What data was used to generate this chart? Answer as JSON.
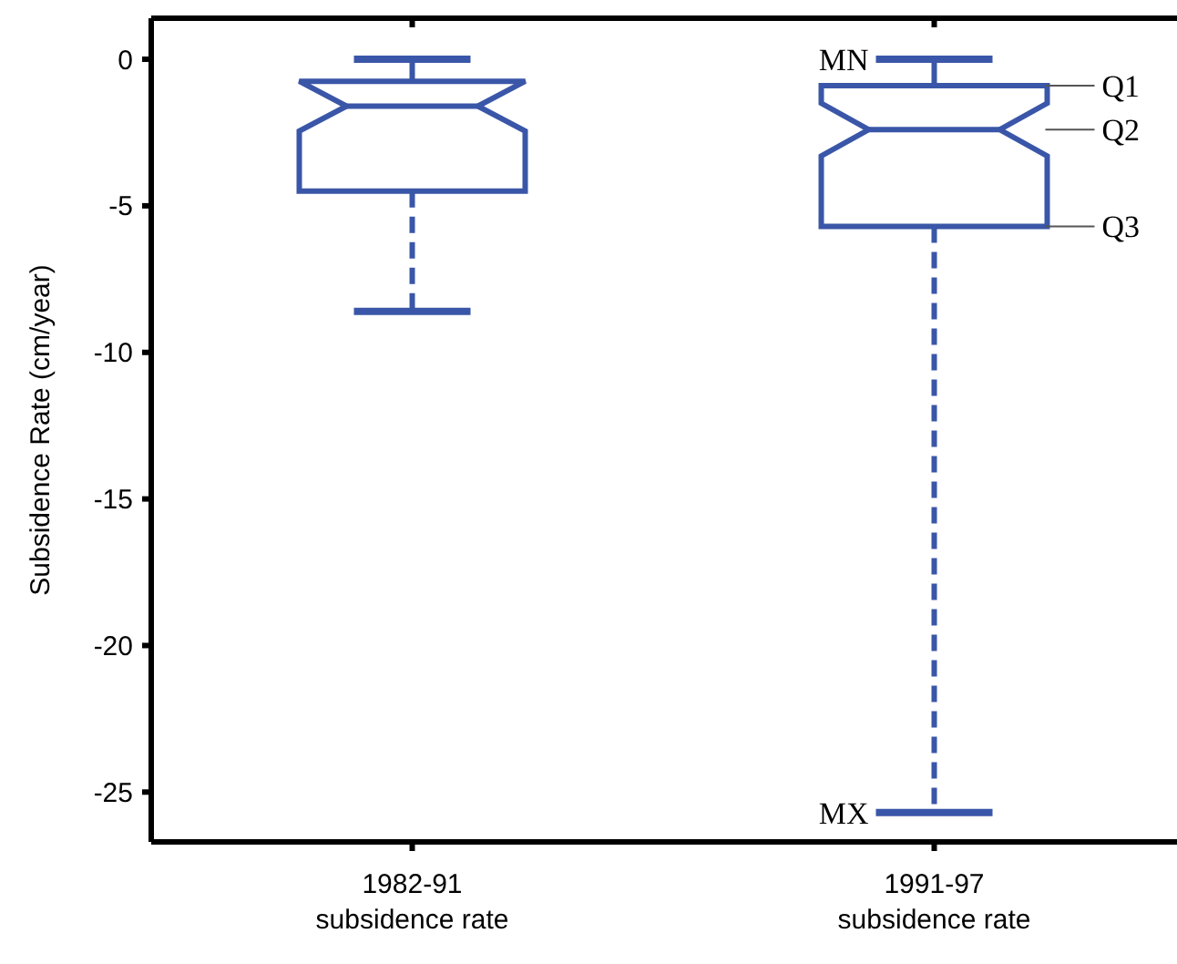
{
  "chart_data": {
    "type": "box",
    "ylabel": "Subsidence Rate (cm/year)",
    "categories": [
      "1982-91 subsidence rate",
      "1991-97 subsidence rate"
    ],
    "color": "#3a56a8",
    "boxes": [
      {
        "low": -8.6,
        "q1": -4.5,
        "median": -1.6,
        "q3": -0.75,
        "high": 0
      },
      {
        "low": -25.7,
        "q1": -5.7,
        "median": -2.4,
        "q3": -0.9,
        "high": 0
      }
    ],
    "ylim": [
      -26.7,
      1.4
    ],
    "yticks": [
      0,
      -5,
      -10,
      -15,
      -20,
      -25
    ],
    "annotations": [
      {
        "text": "MN",
        "x": "1991-97 subsidence rate",
        "y": 0
      },
      "Q1",
      "Q2",
      "Q3",
      {
        "text": "MX",
        "x": "1991-97 subsidence rate",
        "y": -25.7
      }
    ]
  }
}
